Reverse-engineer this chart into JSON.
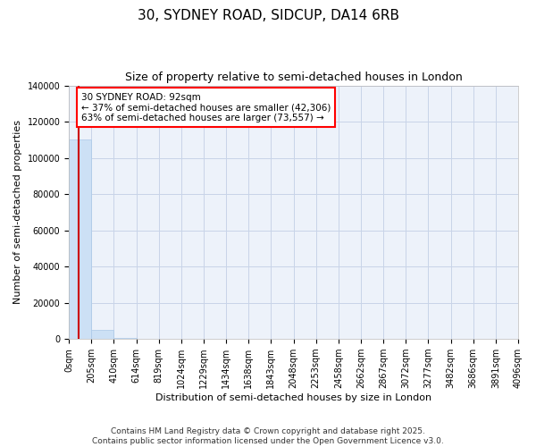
{
  "title": "30, SYDNEY ROAD, SIDCUP, DA14 6RB",
  "subtitle": "Size of property relative to semi-detached houses in London",
  "xlabel": "Distribution of semi-detached houses by size in London",
  "ylabel": "Number of semi-detached properties",
  "property_size": 92,
  "annotation_text": "30 SYDNEY ROAD: 92sqm\n← 37% of semi-detached houses are smaller (42,306)\n63% of semi-detached houses are larger (73,557) →",
  "bar_color": "#cce0f5",
  "bar_edge_color": "#aac8e8",
  "line_color": "#cc0000",
  "grid_color": "#c8d4e8",
  "background_color": "#edf2fa",
  "bin_edges": [
    0,
    205,
    410,
    614,
    819,
    1024,
    1229,
    1434,
    1638,
    1843,
    2048,
    2253,
    2458,
    2662,
    2867,
    3072,
    3277,
    3482,
    3686,
    3891,
    4096
  ],
  "bin_counts": [
    110000,
    5000,
    300,
    100,
    50,
    20,
    10,
    8,
    5,
    4,
    3,
    2,
    2,
    1,
    1,
    1,
    1,
    0,
    0,
    0
  ],
  "ylim": [
    0,
    140000
  ],
  "yticks": [
    0,
    20000,
    40000,
    60000,
    80000,
    100000,
    120000,
    140000
  ],
  "footer": "Contains HM Land Registry data © Crown copyright and database right 2025.\nContains public sector information licensed under the Open Government Licence v3.0.",
  "title_fontsize": 11,
  "subtitle_fontsize": 9,
  "axis_label_fontsize": 8,
  "tick_fontsize": 7,
  "footer_fontsize": 6.5
}
